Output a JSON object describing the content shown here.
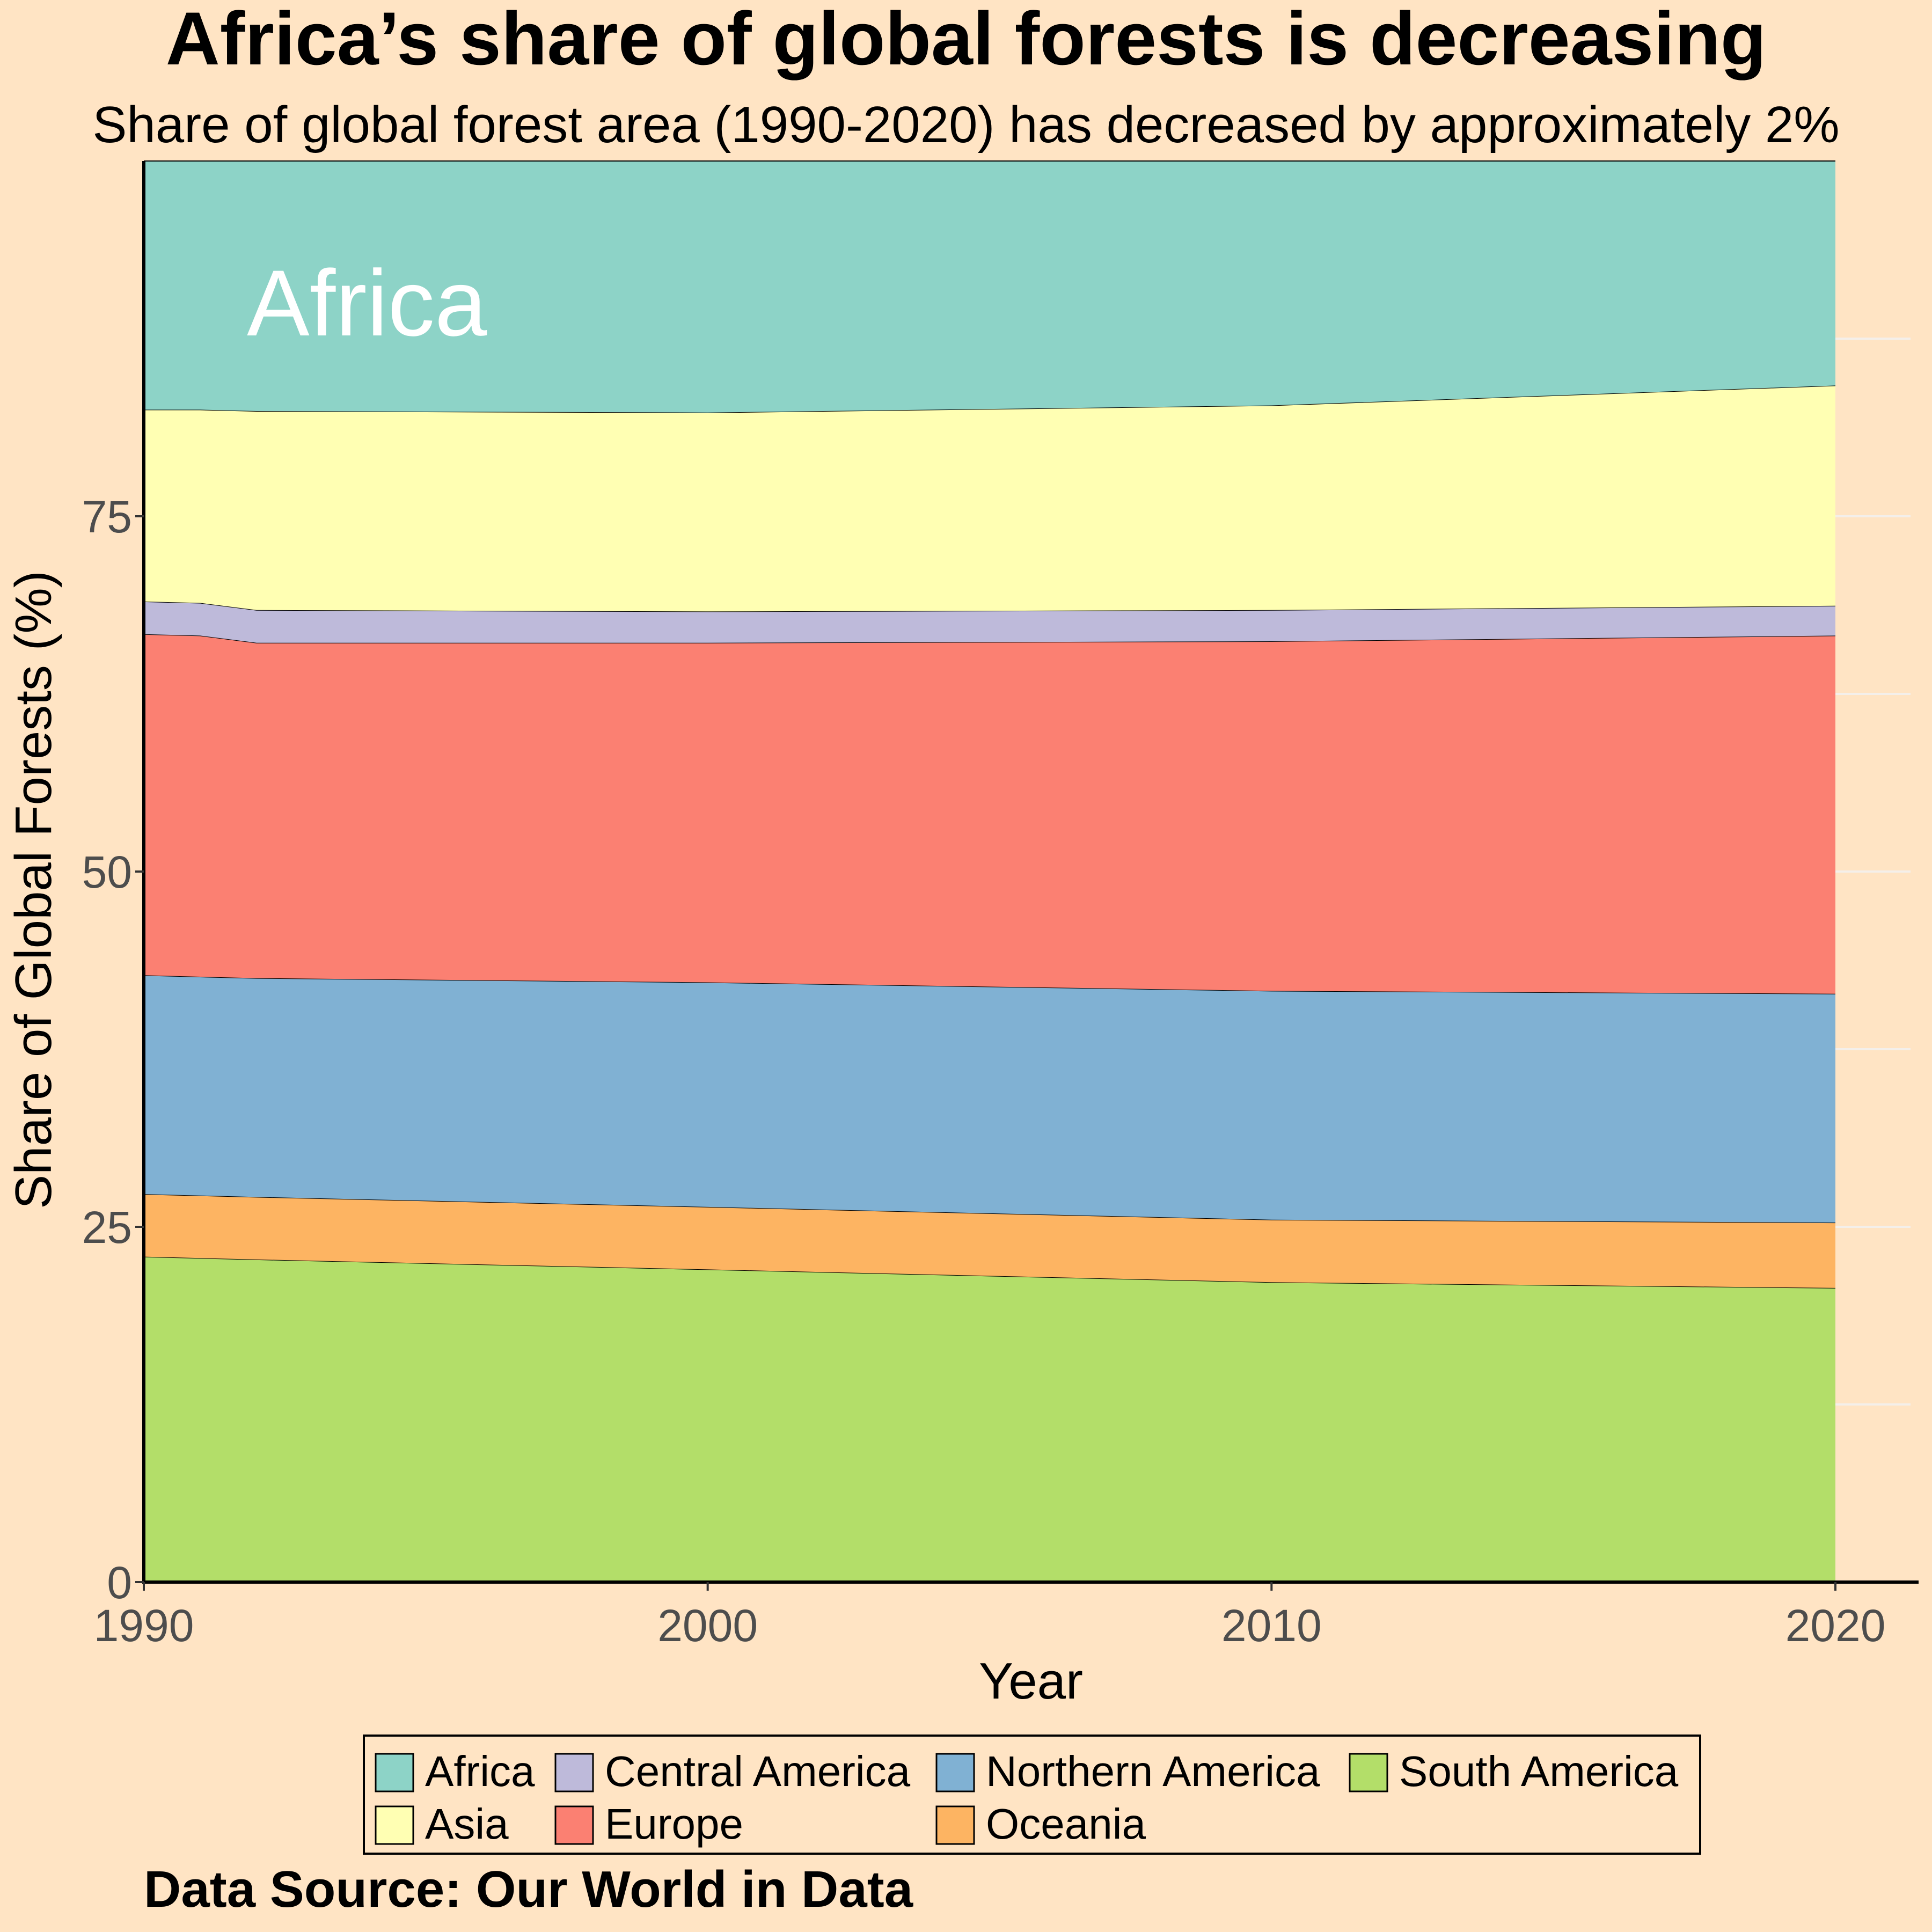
{
  "chart_data": {
    "type": "area",
    "stacked": true,
    "title": "Africa’s share of global forests is decreasing",
    "subtitle": "Share of global forest area (1990-2020) has decreased by approximately 2%",
    "xlabel": "Year",
    "ylabel": "Share of Global Forests (%)",
    "caption": "Data Source: Our World in Data",
    "annotation": "Africa",
    "xlim": [
      1990,
      2020
    ],
    "ylim": [
      0,
      100
    ],
    "x_ticks": [
      1990,
      2000,
      2010,
      2020
    ],
    "y_ticks": [
      0,
      25,
      50,
      75
    ],
    "grid": false,
    "legend_position": "bottom",
    "x": [
      1990,
      1991,
      1992,
      2000,
      2010,
      2020
    ],
    "stack_order_bottom_to_top": [
      "South America",
      "Oceania",
      "Northern America",
      "Europe",
      "Central America",
      "Asia",
      "Africa"
    ],
    "legend_order": [
      "Africa",
      "Asia",
      "Central America",
      "Europe",
      "Northern America",
      "Oceania",
      "South America"
    ],
    "series": [
      {
        "name": "South America",
        "color": "#B3DE69",
        "values": [
          22.9,
          22.8,
          22.7,
          22.0,
          21.1,
          20.7
        ]
      },
      {
        "name": "Oceania",
        "color": "#FDB462",
        "values": [
          4.4,
          4.4,
          4.4,
          4.4,
          4.4,
          4.6
        ]
      },
      {
        "name": "Northern America",
        "color": "#80B1D3",
        "values": [
          15.4,
          15.4,
          15.4,
          15.8,
          16.1,
          16.1
        ]
      },
      {
        "name": "Europe",
        "color": "#FB8072",
        "values": [
          24.0,
          24.0,
          23.6,
          23.9,
          24.6,
          25.2
        ]
      },
      {
        "name": "Central America",
        "color": "#BEBADA",
        "values": [
          2.3,
          2.3,
          2.3,
          2.2,
          2.2,
          2.1
        ]
      },
      {
        "name": "Asia",
        "color": "#FFFFB3",
        "values": [
          13.5,
          13.6,
          14.0,
          14.0,
          14.4,
          15.5
        ]
      },
      {
        "name": "Africa",
        "color": "#8DD3C7",
        "values": [
          17.5,
          17.5,
          17.6,
          17.7,
          17.2,
          15.8
        ]
      }
    ]
  }
}
